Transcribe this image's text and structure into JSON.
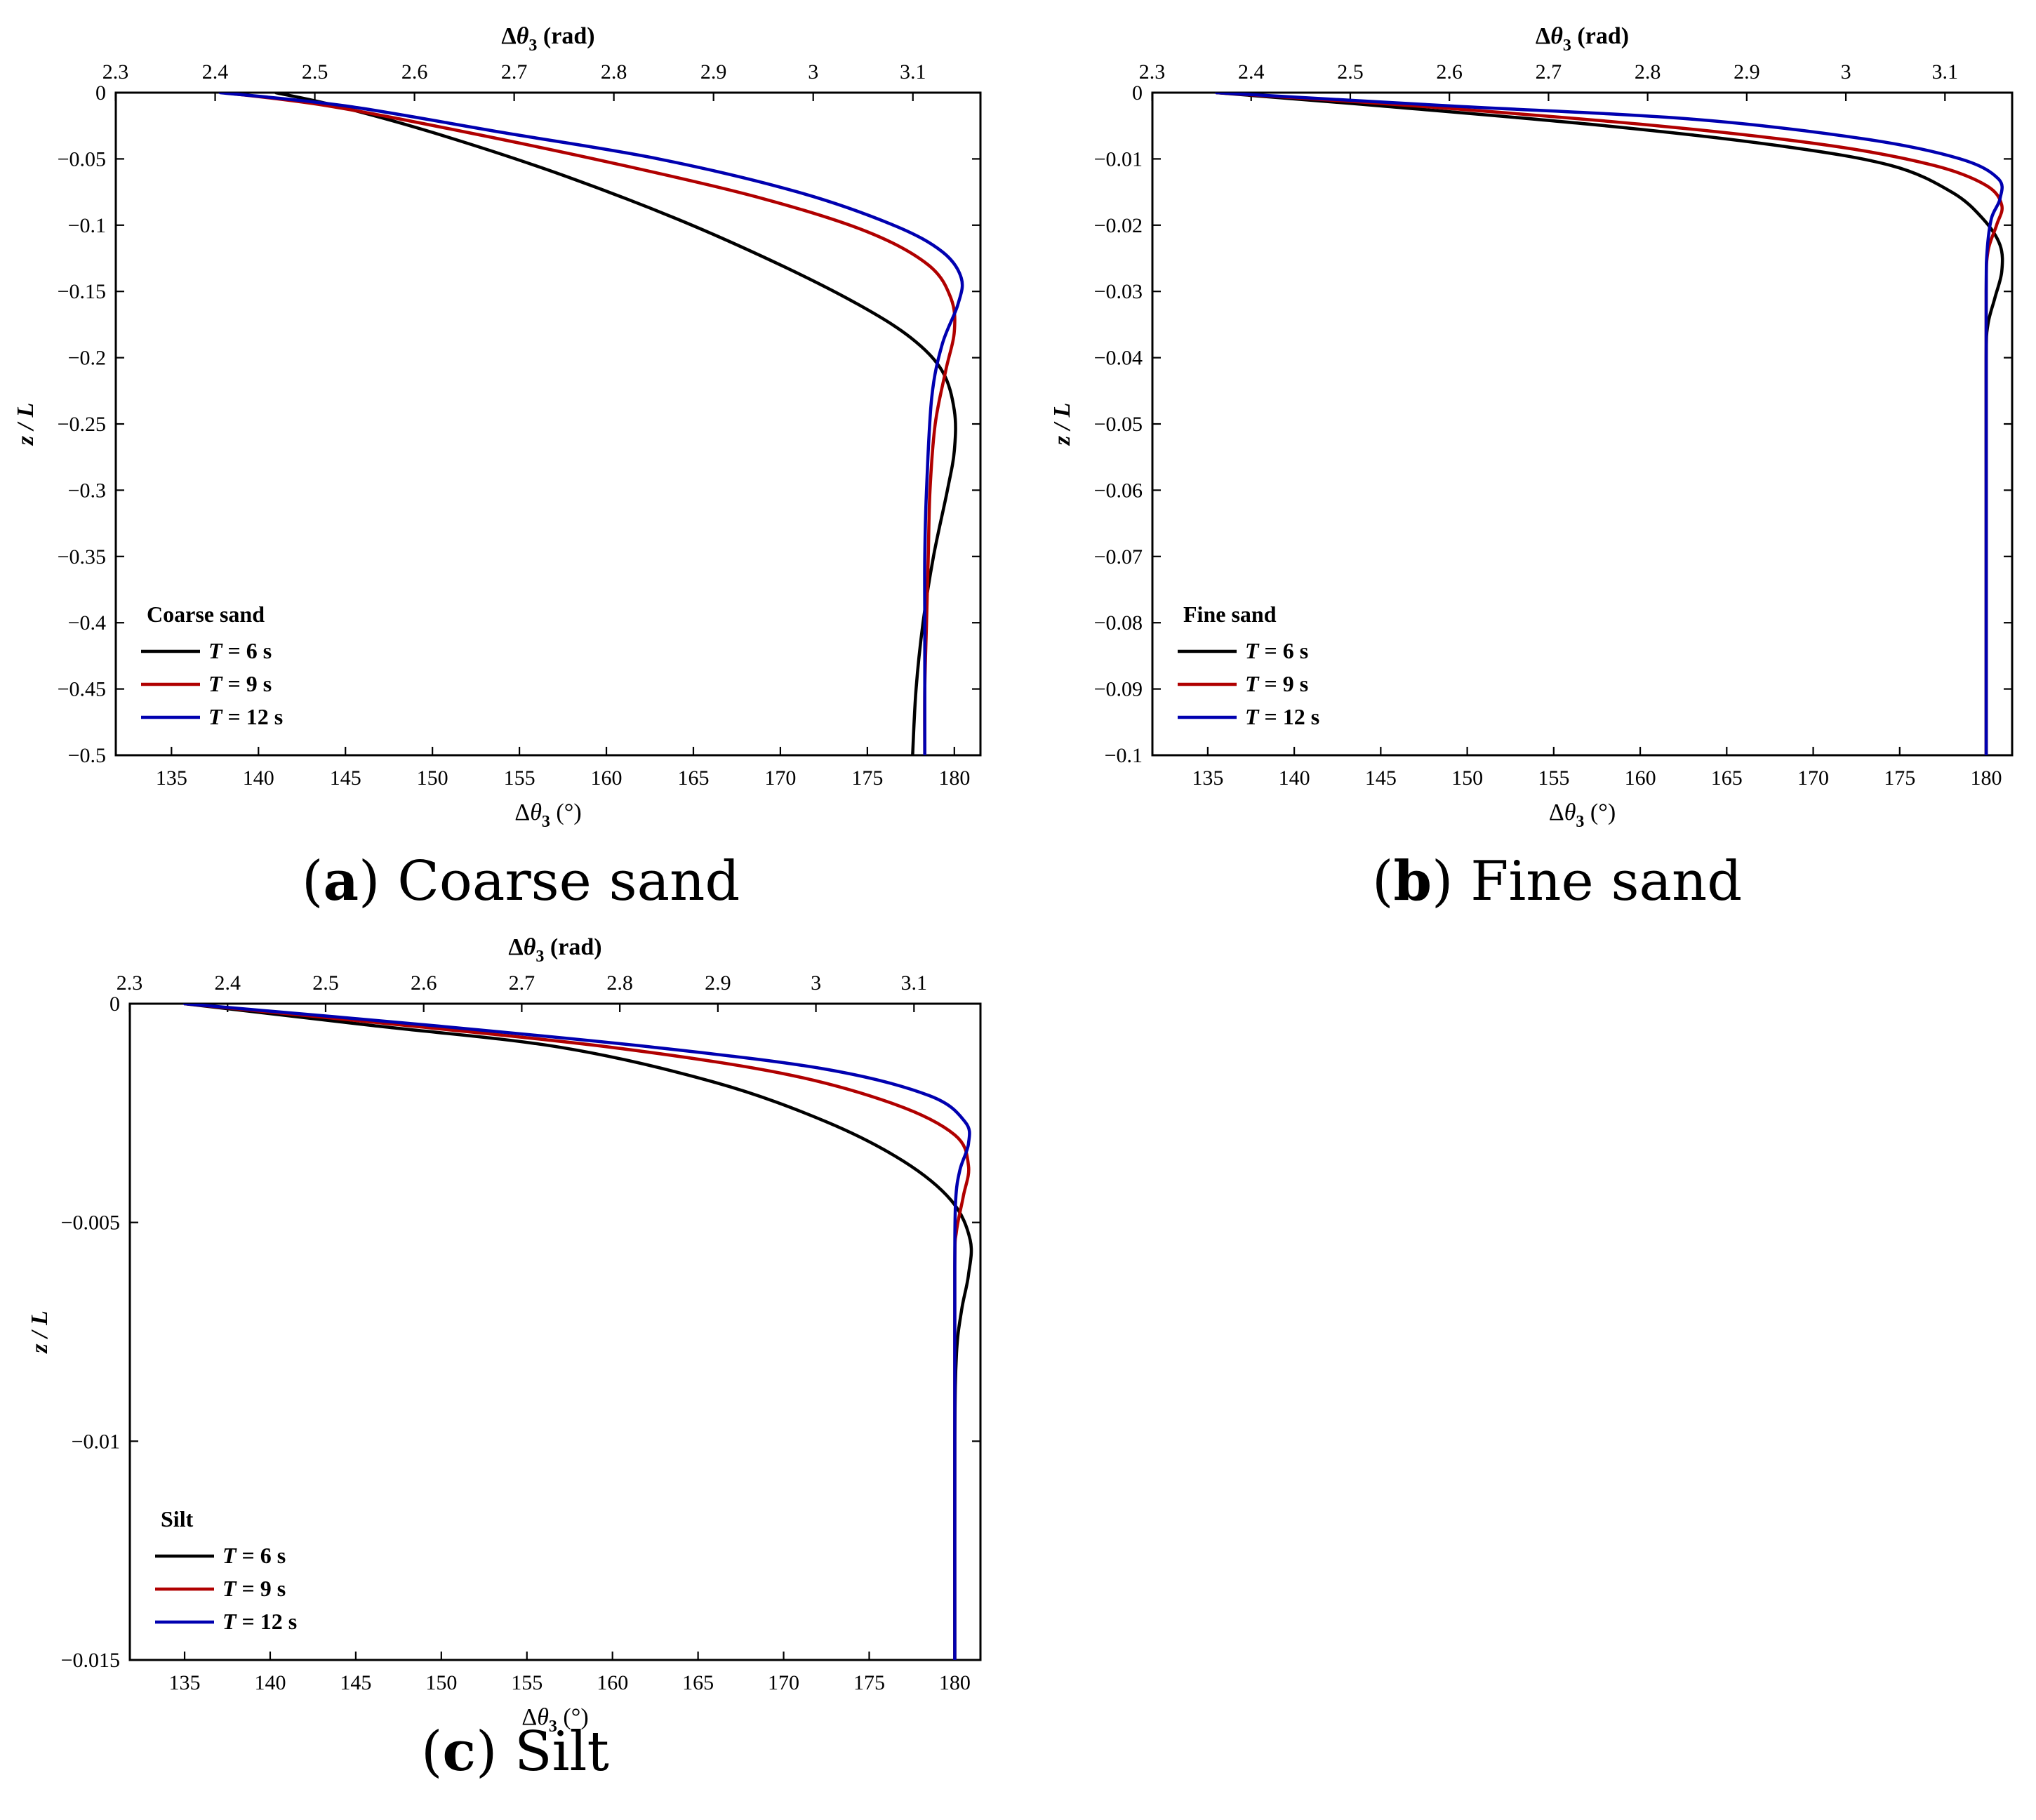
{
  "chart_data": [
    {
      "type": "line",
      "caption_letter": "a",
      "caption_text": "Coarse sand",
      "legend_title": "Coarse sand",
      "xlabel": "Δθ3 (°)",
      "x2label": "Δθ3 (rad)",
      "ylabel": "z / L",
      "xlim": [
        131.8,
        181.5
      ],
      "xticks": [
        135,
        140,
        145,
        150,
        155,
        160,
        165,
        170,
        175,
        180
      ],
      "x2ticks": [
        "2.3",
        "2.4",
        "2.5",
        "2.6",
        "2.7",
        "2.8",
        "2.9",
        "3",
        "3.1"
      ],
      "ylim": [
        -0.5,
        0
      ],
      "yticks": [
        "0",
        "-0.05",
        "-0.1",
        "-0.15",
        "-0.2",
        "-0.25",
        "-0.3",
        "-0.35",
        "-0.4",
        "-0.45",
        "-0.5"
      ],
      "series": [
        {
          "name": "T = 6 s",
          "color": "#000000",
          "points": [
            [
              141.0,
              0
            ],
            [
              144.5,
              -0.01
            ],
            [
              150.0,
              -0.03
            ],
            [
              157.0,
              -0.06
            ],
            [
              164.0,
              -0.095
            ],
            [
              170.0,
              -0.13
            ],
            [
              174.5,
              -0.16
            ],
            [
              177.5,
              -0.185
            ],
            [
              179.3,
              -0.21
            ],
            [
              180.0,
              -0.24
            ],
            [
              180.0,
              -0.27
            ],
            [
              179.6,
              -0.3
            ],
            [
              178.8,
              -0.35
            ],
            [
              178.2,
              -0.4
            ],
            [
              177.8,
              -0.45
            ],
            [
              177.6,
              -0.5
            ]
          ]
        },
        {
          "name": "T = 9 s",
          "color": "#b00000",
          "points": [
            [
              138.0,
              0
            ],
            [
              144.0,
              -0.01
            ],
            [
              152.0,
              -0.03
            ],
            [
              161.0,
              -0.055
            ],
            [
              169.0,
              -0.08
            ],
            [
              175.0,
              -0.105
            ],
            [
              178.5,
              -0.13
            ],
            [
              179.8,
              -0.155
            ],
            [
              180.0,
              -0.18
            ],
            [
              179.5,
              -0.21
            ],
            [
              178.9,
              -0.25
            ],
            [
              178.6,
              -0.3
            ],
            [
              178.5,
              -0.35
            ],
            [
              178.4,
              -0.4
            ],
            [
              178.3,
              -0.45
            ],
            [
              178.3,
              -0.5
            ]
          ]
        },
        {
          "name": "T = 12 s",
          "color": "#0000b0",
          "points": [
            [
              137.8,
              0
            ],
            [
              145.0,
              -0.01
            ],
            [
              154.0,
              -0.03
            ],
            [
              163.0,
              -0.05
            ],
            [
              171.0,
              -0.075
            ],
            [
              176.5,
              -0.1
            ],
            [
              179.3,
              -0.12
            ],
            [
              180.4,
              -0.14
            ],
            [
              180.2,
              -0.16
            ],
            [
              179.3,
              -0.19
            ],
            [
              178.7,
              -0.23
            ],
            [
              178.4,
              -0.3
            ],
            [
              178.3,
              -0.35
            ],
            [
              178.3,
              -0.4
            ],
            [
              178.3,
              -0.45
            ],
            [
              178.3,
              -0.5
            ]
          ]
        }
      ]
    },
    {
      "type": "line",
      "caption_letter": "b",
      "caption_text": "Fine sand",
      "legend_title": "Fine sand",
      "xlabel": "Δθ3 (°)",
      "x2label": "Δθ3 (rad)",
      "ylabel": "z / L",
      "xlim": [
        131.8,
        181.5
      ],
      "xticks": [
        135,
        140,
        145,
        150,
        155,
        160,
        165,
        170,
        175,
        180
      ],
      "x2ticks": [
        "2.3",
        "2.4",
        "2.5",
        "2.6",
        "2.7",
        "2.8",
        "2.9",
        "3",
        "3.1"
      ],
      "ylim": [
        -0.1,
        0
      ],
      "yticks": [
        "0",
        "-0.01",
        "-0.02",
        "-0.03",
        "-0.04",
        "-0.05",
        "-0.06",
        "-0.07",
        "-0.08",
        "-0.09",
        "-0.1"
      ],
      "series": [
        {
          "name": "T = 6 s",
          "color": "#000000",
          "points": [
            [
              135.5,
              0
            ],
            [
              145.0,
              -0.002
            ],
            [
              158.0,
              -0.005
            ],
            [
              168.0,
              -0.008
            ],
            [
              174.5,
              -0.011
            ],
            [
              178.0,
              -0.015
            ],
            [
              179.8,
              -0.019
            ],
            [
              180.8,
              -0.023
            ],
            [
              180.9,
              -0.027
            ],
            [
              180.5,
              -0.031
            ],
            [
              180.1,
              -0.035
            ],
            [
              180.0,
              -0.04
            ],
            [
              180.0,
              -0.06
            ],
            [
              180.0,
              -0.08
            ],
            [
              180.0,
              -0.1
            ]
          ]
        },
        {
          "name": "T = 9 s",
          "color": "#b00000",
          "points": [
            [
              135.5,
              0
            ],
            [
              147.0,
              -0.002
            ],
            [
              161.0,
              -0.005
            ],
            [
              171.0,
              -0.008
            ],
            [
              177.0,
              -0.011
            ],
            [
              180.0,
              -0.014
            ],
            [
              180.9,
              -0.017
            ],
            [
              180.6,
              -0.02
            ],
            [
              180.1,
              -0.024
            ],
            [
              180.0,
              -0.03
            ],
            [
              180.0,
              -0.05
            ],
            [
              180.0,
              -0.07
            ],
            [
              180.0,
              -0.1
            ]
          ]
        },
        {
          "name": "T = 12 s",
          "color": "#0000b0",
          "points": [
            [
              135.5,
              0
            ],
            [
              149.0,
              -0.002
            ],
            [
              163.0,
              -0.004
            ],
            [
              173.0,
              -0.007
            ],
            [
              178.5,
              -0.01
            ],
            [
              180.7,
              -0.013
            ],
            [
              180.8,
              -0.016
            ],
            [
              180.3,
              -0.019
            ],
            [
              180.05,
              -0.024
            ],
            [
              180.0,
              -0.03
            ],
            [
              180.0,
              -0.05
            ],
            [
              180.0,
              -0.07
            ],
            [
              180.0,
              -0.1
            ]
          ]
        }
      ]
    },
    {
      "type": "line",
      "caption_letter": "c",
      "caption_text": "Silt",
      "legend_title": "Silt",
      "xlabel": "Δθ3 (°)",
      "x2label": "Δθ3 (rad)",
      "ylabel": "z / L",
      "xlim": [
        131.8,
        181.5
      ],
      "xticks": [
        135,
        140,
        145,
        150,
        155,
        160,
        165,
        170,
        175,
        180
      ],
      "x2ticks": [
        "2.3",
        "2.4",
        "2.5",
        "2.6",
        "2.7",
        "2.8",
        "2.9",
        "3",
        "3.1"
      ],
      "ylim": [
        -0.015,
        0
      ],
      "yticks": [
        "0",
        "-0.005",
        "-0.01",
        "-0.015"
      ],
      "series": [
        {
          "name": "T = 6 s",
          "color": "#000000",
          "points": [
            [
              135.0,
              0
            ],
            [
              146.0,
              -0.0005
            ],
            [
              157.0,
              -0.001
            ],
            [
              166.0,
              -0.0018
            ],
            [
              172.5,
              -0.0027
            ],
            [
              177.0,
              -0.0036
            ],
            [
              179.8,
              -0.0045
            ],
            [
              180.9,
              -0.0054
            ],
            [
              180.8,
              -0.0062
            ],
            [
              180.4,
              -0.007
            ],
            [
              180.1,
              -0.008
            ],
            [
              180.0,
              -0.01
            ],
            [
              180.0,
              -0.015
            ]
          ]
        },
        {
          "name": "T = 9 s",
          "color": "#b00000",
          "points": [
            [
              135.0,
              0
            ],
            [
              148.0,
              -0.0005
            ],
            [
              160.0,
              -0.001
            ],
            [
              170.0,
              -0.0016
            ],
            [
              176.5,
              -0.0023
            ],
            [
              180.0,
              -0.003
            ],
            [
              180.8,
              -0.0037
            ],
            [
              180.5,
              -0.0044
            ],
            [
              180.1,
              -0.0052
            ],
            [
              180.0,
              -0.006
            ],
            [
              180.0,
              -0.01
            ],
            [
              180.0,
              -0.015
            ]
          ]
        },
        {
          "name": "T = 12 s",
          "color": "#0000b0",
          "points": [
            [
              135.0,
              0
            ],
            [
              149.5,
              -0.0005
            ],
            [
              162.5,
              -0.001
            ],
            [
              172.5,
              -0.0015
            ],
            [
              178.5,
              -0.0021
            ],
            [
              180.6,
              -0.0027
            ],
            [
              180.8,
              -0.0032
            ],
            [
              180.3,
              -0.0038
            ],
            [
              180.05,
              -0.0045
            ],
            [
              180.0,
              -0.006
            ],
            [
              180.0,
              -0.01
            ],
            [
              180.0,
              -0.015
            ]
          ]
        }
      ]
    }
  ]
}
